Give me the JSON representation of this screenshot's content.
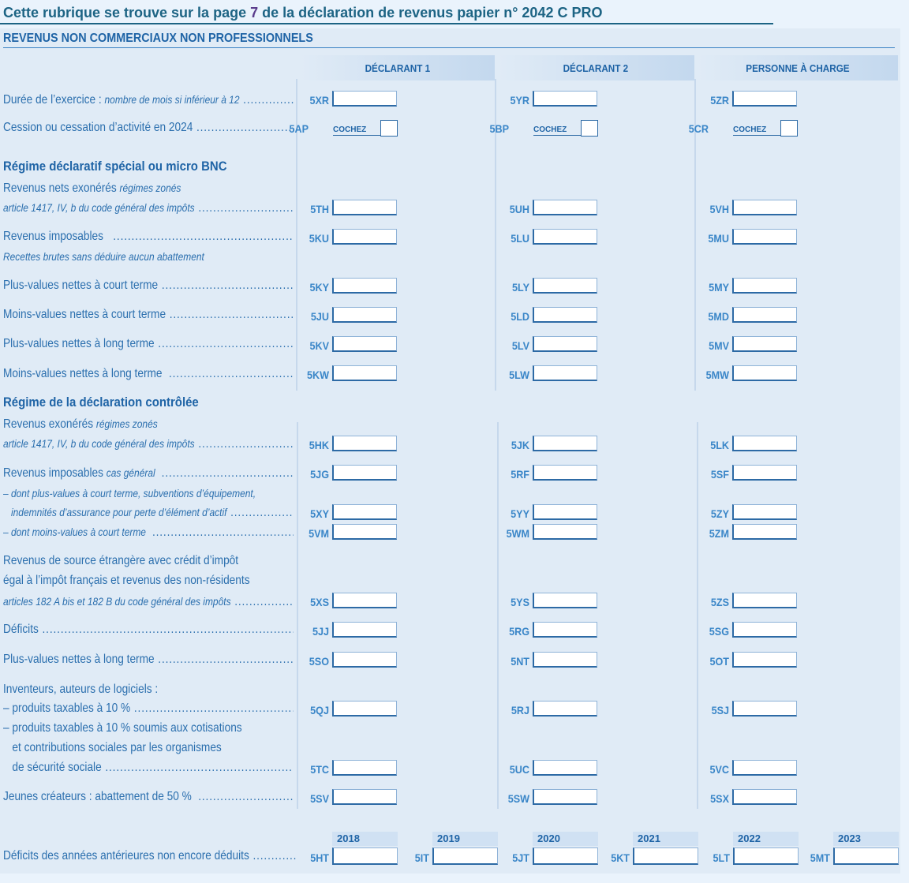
{
  "header": {
    "notice_before": "Cette rubrique se trouve sur la page ",
    "notice_page": "7",
    "notice_after": " de la déclaration de revenus papier n° 2042 C PRO",
    "section_title": "REVENUS NON COMMERCIAUX NON PROFESSIONNELS"
  },
  "columns": [
    "DÉCLARANT 1",
    "DÉCLARANT 2",
    "PERSONNE À CHARGE"
  ],
  "checkbox_label": "COCHEZ",
  "rows": [
    {
      "type": "field",
      "lines": [
        {
          "parts": [
            {
              "t": "Durée de l’exercice : "
            },
            {
              "t": "nombre de mois si inférieur à 12",
              "i": true
            }
          ],
          "dots": true
        }
      ],
      "codes": [
        "5XR",
        "5YR",
        "5ZR"
      ]
    },
    {
      "type": "checkbox",
      "lines": [
        {
          "parts": [
            {
              "t": "Cession ou cessation d’activité en 2024"
            }
          ],
          "dots": true
        }
      ],
      "codes": [
        "5AP",
        "5BP",
        "5CR"
      ]
    },
    {
      "type": "heading",
      "text": "Régime déclaratif spécial ou micro BNC"
    },
    {
      "type": "field",
      "lines": [
        {
          "parts": [
            {
              "t": "Revenus nets exonérés "
            },
            {
              "t": "régimes zonés",
              "i": true
            }
          ]
        },
        {
          "parts": [
            {
              "t": "article 1417, IV, b du code général des impôts",
              "i": true
            }
          ],
          "dots": true
        }
      ],
      "codes": [
        "5TH",
        "5UH",
        "5VH"
      ]
    },
    {
      "type": "field",
      "lines": [
        {
          "parts": [
            {
              "t": "Revenus imposables  "
            }
          ],
          "dots": true
        },
        {
          "parts": [
            {
              "t": "Recettes brutes sans déduire aucun abattement",
              "i": true
            }
          ]
        }
      ],
      "codes": [
        "5KU",
        "5LU",
        "5MU"
      ]
    },
    {
      "type": "field",
      "lines": [
        {
          "parts": [
            {
              "t": "Plus-values nettes à court terme"
            }
          ],
          "dots": true
        }
      ],
      "codes": [
        "5KY",
        "5LY",
        "5MY"
      ]
    },
    {
      "type": "field",
      "lines": [
        {
          "parts": [
            {
              "t": "Moins-values nettes à court terme"
            }
          ],
          "dots": true
        }
      ],
      "codes": [
        "5JU",
        "5LD",
        "5MD"
      ]
    },
    {
      "type": "field",
      "lines": [
        {
          "parts": [
            {
              "t": "Plus-values nettes à long terme"
            }
          ],
          "dots": true
        }
      ],
      "codes": [
        "5KV",
        "5LV",
        "5MV"
      ]
    },
    {
      "type": "field",
      "lines": [
        {
          "parts": [
            {
              "t": "Moins-values nettes à long terme "
            }
          ],
          "dots": true
        }
      ],
      "codes": [
        "5KW",
        "5LW",
        "5MW"
      ]
    },
    {
      "type": "heading",
      "text": "Régime de la déclaration contrôlée"
    },
    {
      "type": "field",
      "lines": [
        {
          "parts": [
            {
              "t": "Revenus exonérés "
            },
            {
              "t": "régimes zonés",
              "i": true
            }
          ]
        },
        {
          "parts": [
            {
              "t": "article 1417, IV, b du code général des impôts",
              "i": true
            }
          ],
          "dots": true
        }
      ],
      "codes": [
        "5HK",
        "5JK",
        "5LK"
      ]
    },
    {
      "type": "field",
      "lines": [
        {
          "parts": [
            {
              "t": "Revenus imposables "
            },
            {
              "t": "cas général ",
              "i": true
            }
          ],
          "dots": true
        }
      ],
      "codes": [
        "5JG",
        "5RF",
        "5SF"
      ]
    },
    {
      "type": "field",
      "lines": [
        {
          "parts": [
            {
              "t": "– dont plus-values à court terme, subventions d’équipement,",
              "i": true
            }
          ]
        },
        {
          "parts": [
            {
              "t": "   indemnités d’assurance pour perte d’élément d’actif",
              "i": true
            }
          ],
          "dots": true
        }
      ],
      "codes": [
        "5XY",
        "5YY",
        "5ZY"
      ]
    },
    {
      "type": "field",
      "lines": [
        {
          "parts": [
            {
              "t": "– dont moins-values à court terme ",
              "i": true
            }
          ],
          "dots": true
        }
      ],
      "codes": [
        "5VM",
        "5WM",
        "5ZM"
      ]
    },
    {
      "type": "field",
      "lines": [
        {
          "parts": [
            {
              "t": "Revenus de source étrangère avec crédit d’impôt"
            }
          ]
        },
        {
          "parts": [
            {
              "t": "égal à l’impôt français et revenus des non-résidents"
            }
          ]
        },
        {
          "parts": [
            {
              "t": "articles 182 A bis et 182 B du code général des impôts",
              "i": true
            }
          ],
          "dots": true
        }
      ],
      "codes": [
        "5XS",
        "5YS",
        "5ZS"
      ]
    },
    {
      "type": "field",
      "lines": [
        {
          "parts": [
            {
              "t": "Déficits"
            }
          ],
          "dots": true
        }
      ],
      "codes": [
        "5JJ",
        "5RG",
        "5SG"
      ]
    },
    {
      "type": "field",
      "lines": [
        {
          "parts": [
            {
              "t": "Plus-values nettes à long terme"
            }
          ],
          "dots": true
        }
      ],
      "codes": [
        "5SO",
        "5NT",
        "5OT"
      ]
    },
    {
      "type": "field",
      "lines": [
        {
          "parts": [
            {
              "t": "Inventeurs, auteurs de logiciels :"
            }
          ]
        },
        {
          "parts": [
            {
              "t": "– produits taxables à 10 %"
            }
          ],
          "dots": true
        }
      ],
      "codes": [
        "5QJ",
        "5RJ",
        "5SJ"
      ]
    },
    {
      "type": "field",
      "lines": [
        {
          "parts": [
            {
              "t": "– produits taxables à 10 % soumis aux cotisations"
            }
          ]
        },
        {
          "parts": [
            {
              "t": "   et contributions sociales par les organismes"
            }
          ]
        },
        {
          "parts": [
            {
              "t": "   de sécurité sociale"
            }
          ],
          "dots": true
        }
      ],
      "codes": [
        "5TC",
        "5UC",
        "5VC"
      ]
    },
    {
      "type": "field",
      "lines": [
        {
          "parts": [
            {
              "t": "Jeunes créateurs : abattement de 50 % "
            }
          ],
          "dots": true
        }
      ],
      "codes": [
        "5SV",
        "5SW",
        "5SX"
      ]
    }
  ],
  "prior_deficits": {
    "label": "Déficits des années antérieures non encore déduits",
    "years": [
      "2018",
      "2019",
      "2020",
      "2021",
      "2022",
      "2023"
    ],
    "codes": [
      "5HT",
      "5IT",
      "5JT",
      "5KT",
      "5LT",
      "5MT"
    ]
  }
}
